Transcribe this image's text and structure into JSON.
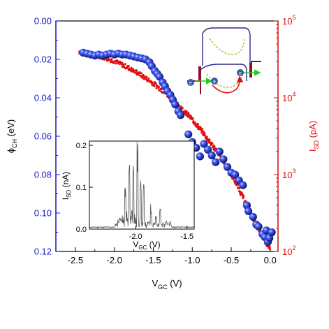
{
  "chart_data": [
    {
      "type": "scatter",
      "role": "main",
      "xlabel": {
        "main": "V",
        "sub": "GC",
        "unit": " (V)"
      },
      "ylabel_left": {
        "main": "ϕ",
        "sub": "CH",
        "unit": " (eV)"
      },
      "ylabel_right": {
        "main": "I",
        "sub": "SD",
        "unit": " (pA)"
      },
      "xlim": [
        -2.75,
        0.1
      ],
      "ylim_left": [
        0.12,
        0.0
      ],
      "ylim_right": [
        100,
        100000
      ],
      "y_right_scale": "log",
      "x_ticks": [
        "-2.5",
        "-2.0",
        "-1.5",
        "-1.0",
        "-0.5",
        "0.0"
      ],
      "y_left_ticks": [
        "0.00",
        "0.02",
        "0.04",
        "0.06",
        "0.08",
        "0.10",
        "0.12"
      ],
      "y_right_ticks": [
        {
          "base": "10",
          "exp": "2"
        },
        {
          "base": "10",
          "exp": "3"
        },
        {
          "base": "10",
          "exp": "4"
        },
        {
          "base": "10",
          "exp": "5"
        }
      ],
      "series": [
        {
          "axis": "left",
          "color": "#1a33ff",
          "marker": "sphere",
          "points": [
            [
              -2.4,
              0.0165
            ],
            [
              -2.35,
              0.017
            ],
            [
              -2.3,
              0.0175
            ],
            [
              -2.25,
              0.018
            ],
            [
              -2.2,
              0.0175
            ],
            [
              -2.15,
              0.018
            ],
            [
              -2.1,
              0.0175
            ],
            [
              -2.05,
              0.017
            ],
            [
              -2.0,
              0.0175
            ],
            [
              -1.95,
              0.017
            ],
            [
              -1.9,
              0.0175
            ],
            [
              -1.85,
              0.0175
            ],
            [
              -1.8,
              0.018
            ],
            [
              -1.75,
              0.0185
            ],
            [
              -1.7,
              0.019
            ],
            [
              -1.65,
              0.0195
            ],
            [
              -1.6,
              0.02
            ],
            [
              -1.55,
              0.0215
            ],
            [
              -1.52,
              0.0235
            ],
            [
              -1.48,
              0.026
            ],
            [
              -1.45,
              0.0275
            ],
            [
              -1.42,
              0.029
            ],
            [
              -1.38,
              0.032
            ],
            [
              -1.35,
              0.034
            ],
            [
              -1.32,
              0.0365
            ],
            [
              -1.28,
              0.0385
            ],
            [
              -1.25,
              0.041
            ],
            [
              -1.22,
              0.0435
            ],
            [
              -1.18,
              0.047
            ],
            [
              -1.15,
              0.049
            ],
            [
              -1.05,
              0.059
            ],
            [
              -1.0,
              0.063
            ],
            [
              -0.95,
              0.066
            ],
            [
              -0.9,
              0.0705
            ],
            [
              -0.85,
              0.064
            ],
            [
              -0.8,
              0.067
            ],
            [
              -0.75,
              0.07
            ],
            [
              -0.7,
              0.0735
            ],
            [
              -0.65,
              0.068
            ],
            [
              -0.6,
              0.072
            ],
            [
              -0.55,
              0.076
            ],
            [
              -0.5,
              0.079
            ],
            [
              -0.45,
              0.08
            ],
            [
              -0.4,
              0.083
            ],
            [
              -0.35,
              0.0855
            ],
            [
              -0.3,
              0.096
            ],
            [
              -0.28,
              0.099
            ],
            [
              -0.22,
              0.102
            ],
            [
              -0.18,
              0.106
            ],
            [
              -0.15,
              0.107
            ],
            [
              -0.1,
              0.111
            ],
            [
              -0.07,
              0.1125
            ],
            [
              -0.05,
              0.109
            ],
            [
              -0.03,
              0.115
            ],
            [
              -0.01,
              0.113
            ],
            [
              0.02,
              0.11
            ]
          ]
        },
        {
          "axis": "right",
          "color": "#e01010",
          "marker": "dense-line",
          "points": [
            [
              -2.45,
              40000
            ],
            [
              -2.3,
              37000
            ],
            [
              -2.15,
              34000
            ],
            [
              -2.0,
              30000
            ],
            [
              -1.85,
              25500
            ],
            [
              -1.7,
              21000
            ],
            [
              -1.55,
              16800
            ],
            [
              -1.4,
              12900
            ],
            [
              -1.25,
              9500
            ],
            [
              -1.1,
              6700
            ],
            [
              -1.0,
              5200
            ],
            [
              -0.9,
              3950
            ],
            [
              -0.8,
              2900
            ],
            [
              -0.7,
              2100
            ],
            [
              -0.6,
              1480
            ],
            [
              -0.5,
              1010
            ],
            [
              -0.4,
              650
            ],
            [
              -0.3,
              400
            ],
            [
              -0.2,
              245
            ],
            [
              -0.1,
              160
            ],
            [
              0.0,
              105
            ]
          ]
        }
      ],
      "schematic": {
        "top_band_color": "#2b2b8c",
        "bottom_band_color": "#2b2b8c",
        "dashed_color": "#a8b820",
        "barrier_color": "#8b1030",
        "green_arrow_color": "#22cc22",
        "red_arrow_color": "#e01010",
        "electron_color": "#3a5aa0",
        "electron_label": "e"
      }
    },
    {
      "type": "line",
      "role": "inset",
      "xlabel": {
        "main": "V",
        "sub": "GC",
        "unit": " (V)"
      },
      "ylabel": {
        "main": "I",
        "sub": "SD",
        "unit": " (nA)"
      },
      "xlim": [
        -2.45,
        -1.43
      ],
      "ylim": [
        0.0,
        0.21
      ],
      "x_ticks": [
        "-2.0",
        "-1.5"
      ],
      "y_ticks": [
        "0.0",
        "0.1",
        "0.2"
      ],
      "color": "#555555"
    }
  ]
}
